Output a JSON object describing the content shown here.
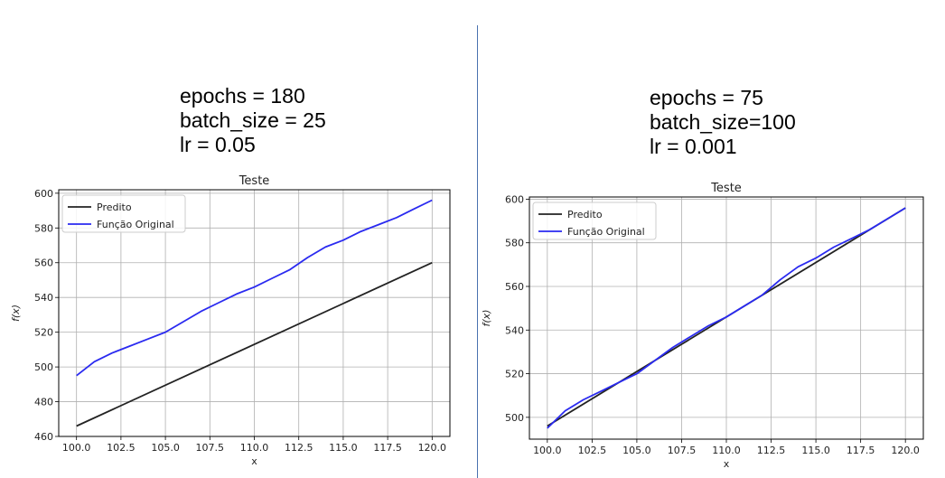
{
  "chart_data": [
    {
      "type": "line",
      "params": [
        "epochs = 180",
        "batch_size = 25",
        "lr = 0.05"
      ],
      "title": "Teste",
      "xlabel": "x",
      "ylabel": "f(x)",
      "xlim": [
        99.0,
        121.0
      ],
      "ylim": [
        460,
        602
      ],
      "xticks": [
        100.0,
        102.5,
        105.0,
        107.5,
        110.0,
        112.5,
        115.0,
        117.5,
        120.0
      ],
      "xtick_labels": [
        "100.0",
        "102.5",
        "105.0",
        "107.5",
        "110.0",
        "112.5",
        "115.0",
        "117.5",
        "120.0"
      ],
      "yticks": [
        460,
        480,
        500,
        520,
        540,
        560,
        580,
        600
      ],
      "ytick_labels": [
        "460",
        "480",
        "500",
        "520",
        "540",
        "560",
        "580",
        "600"
      ],
      "grid": true,
      "legend": "upper-left",
      "series": [
        {
          "name": "Predito",
          "color": "#222222",
          "x": [
            100.0,
            120.0
          ],
          "y": [
            466,
            560
          ]
        },
        {
          "name": "Função Original",
          "color": "#2a2af0",
          "x": [
            100.0,
            101.0,
            102.0,
            103.0,
            104.0,
            105.0,
            106.0,
            107.0,
            108.0,
            109.0,
            110.0,
            111.0,
            112.0,
            113.0,
            114.0,
            115.0,
            116.0,
            117.0,
            118.0,
            119.0,
            120.0
          ],
          "y": [
            495,
            503,
            508,
            512,
            516,
            520,
            526,
            532,
            537,
            542,
            546,
            551,
            556,
            563,
            569,
            573,
            578,
            582,
            586,
            591,
            596
          ]
        }
      ]
    },
    {
      "type": "line",
      "params": [
        "epochs = 75",
        "batch_size=100",
        "lr = 0.001"
      ],
      "title": "Teste",
      "xlabel": "x",
      "ylabel": "f(x)",
      "xlim": [
        99.0,
        121.0
      ],
      "ylim": [
        490,
        601
      ],
      "xticks": [
        100.0,
        102.5,
        105.0,
        107.5,
        110.0,
        112.5,
        115.0,
        117.5,
        120.0
      ],
      "xtick_labels": [
        "100.0",
        "102.5",
        "105.0",
        "107.5",
        "110.0",
        "112.5",
        "115.0",
        "117.5",
        "120.0"
      ],
      "yticks": [
        500,
        520,
        540,
        560,
        580,
        600
      ],
      "ytick_labels": [
        "500",
        "520",
        "540",
        "560",
        "580",
        "600"
      ],
      "grid": true,
      "legend": "upper-left",
      "series": [
        {
          "name": "Predito",
          "color": "#222222",
          "x": [
            100.0,
            120.0
          ],
          "y": [
            496,
            596
          ]
        },
        {
          "name": "Função Original",
          "color": "#2a2af0",
          "x": [
            100.0,
            101.0,
            102.0,
            103.0,
            104.0,
            105.0,
            106.0,
            107.0,
            108.0,
            109.0,
            110.0,
            111.0,
            112.0,
            113.0,
            114.0,
            115.0,
            116.0,
            117.0,
            118.0,
            119.0,
            120.0
          ],
          "y": [
            495,
            503,
            508,
            512,
            516,
            520,
            526,
            532,
            537,
            542,
            546,
            551,
            556,
            563,
            569,
            573,
            578,
            582,
            586,
            591,
            596
          ]
        }
      ]
    }
  ]
}
